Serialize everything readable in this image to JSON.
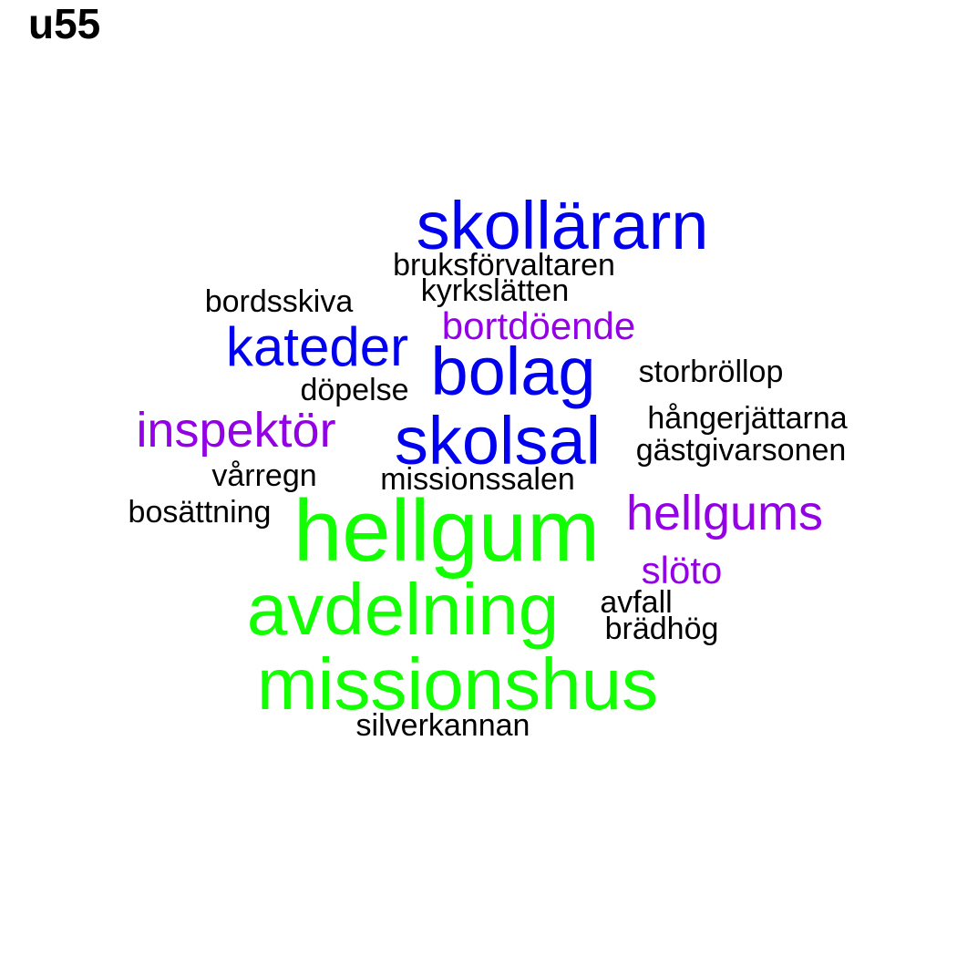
{
  "title": "u55",
  "colors": {
    "green": "#11ff00",
    "blue": "#0000ee",
    "purple": "#9400e6",
    "black": "#000000"
  },
  "words": [
    {
      "text": "skollärarn",
      "color": "blue"
    },
    {
      "text": "bruksförvaltaren",
      "color": "black"
    },
    {
      "text": "kyrkslätten",
      "color": "black"
    },
    {
      "text": "bordsskiva",
      "color": "black"
    },
    {
      "text": "bortdöende",
      "color": "purple"
    },
    {
      "text": "kateder",
      "color": "blue"
    },
    {
      "text": "bolag",
      "color": "blue"
    },
    {
      "text": "storbröllop",
      "color": "black"
    },
    {
      "text": "döpelse",
      "color": "black"
    },
    {
      "text": "hångerjättarna",
      "color": "black"
    },
    {
      "text": "inspektör",
      "color": "purple"
    },
    {
      "text": "skolsal",
      "color": "blue"
    },
    {
      "text": "gästgivarsonen",
      "color": "black"
    },
    {
      "text": "vårregn",
      "color": "black"
    },
    {
      "text": "missionssalen",
      "color": "black"
    },
    {
      "text": "bosättning",
      "color": "black"
    },
    {
      "text": "hellgum",
      "color": "green"
    },
    {
      "text": "hellgums",
      "color": "purple"
    },
    {
      "text": "slöto",
      "color": "purple"
    },
    {
      "text": "avdelning",
      "color": "green"
    },
    {
      "text": "avfall",
      "color": "black"
    },
    {
      "text": "brädhög",
      "color": "black"
    },
    {
      "text": "missionshus",
      "color": "green"
    },
    {
      "text": "silverkannan",
      "color": "black"
    }
  ]
}
